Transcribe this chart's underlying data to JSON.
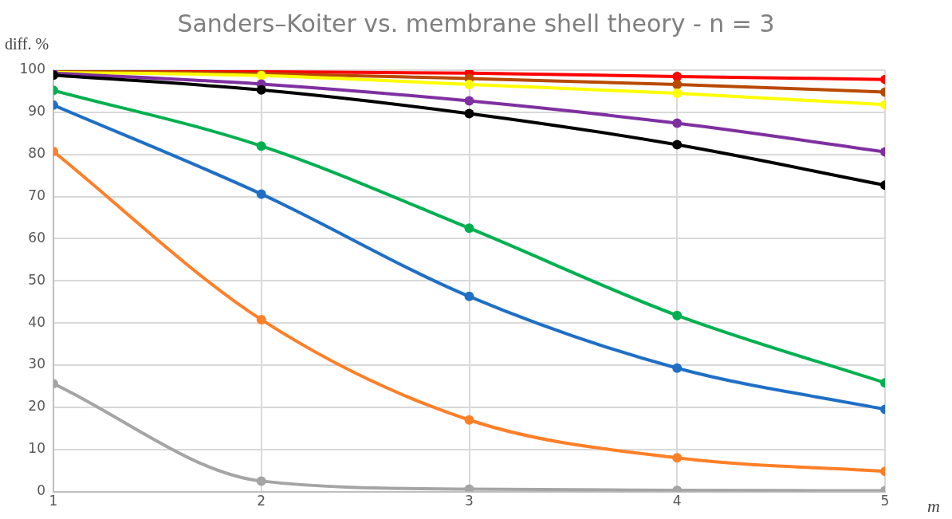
{
  "chart_data": {
    "type": "line",
    "title": "Sanders–Koiter vs. membrane shell theory - n = 3",
    "xlabel": "m",
    "ylabel": "diff. %",
    "x": [
      1,
      2,
      3,
      4,
      5
    ],
    "xlim": [
      1,
      5
    ],
    "xticks": [
      1,
      2,
      3,
      4,
      5
    ],
    "ylim": [
      0,
      100
    ],
    "yticks": [
      0,
      10,
      20,
      30,
      40,
      50,
      60,
      70,
      80,
      90,
      100
    ],
    "grid": true,
    "legend": false,
    "marker": "circle",
    "line_style": "solid",
    "series": [
      {
        "color": "#a5a5a5",
        "values": [
          25.6,
          2.5,
          0.6,
          0.3,
          0.2
        ]
      },
      {
        "color": "#ff7f27",
        "values": [
          80.7,
          40.8,
          17.0,
          8.0,
          4.8
        ]
      },
      {
        "color": "#1f6fc6",
        "values": [
          91.7,
          70.6,
          46.3,
          29.3,
          19.5
        ]
      },
      {
        "color": "#00b050",
        "values": [
          95.2,
          82.0,
          62.5,
          41.8,
          25.8
        ]
      },
      {
        "color": "#000000",
        "values": [
          98.8,
          95.3,
          89.7,
          82.3,
          72.7
        ]
      },
      {
        "color": "#7f30a0",
        "values": [
          99.3,
          96.7,
          92.7,
          87.4,
          80.6
        ]
      },
      {
        "color": "#ffff00",
        "values": [
          99.5,
          98.7,
          96.6,
          94.5,
          91.8
        ]
      },
      {
        "color": "#b84a00",
        "values": [
          99.8,
          99.2,
          98.0,
          96.6,
          94.8
        ]
      },
      {
        "color": "#ff0000",
        "values": [
          99.8,
          99.6,
          99.3,
          98.5,
          97.8
        ]
      }
    ]
  }
}
